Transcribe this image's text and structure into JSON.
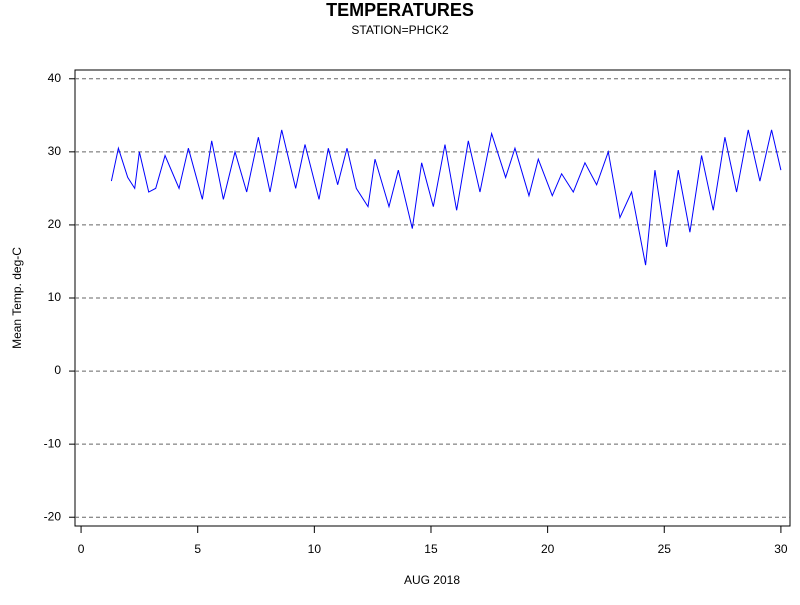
{
  "chart_data": {
    "type": "line",
    "title": "TEMPERATURES",
    "subtitle": "STATION=PHCK2",
    "x_label": "AUG 2018",
    "y_label": "Mean Temp. deg-C",
    "x": [
      1.3,
      1.6,
      2.0,
      2.3,
      2.5,
      2.9,
      3.2,
      3.6,
      4.2,
      4.6,
      5.2,
      5.6,
      6.1,
      6.6,
      7.1,
      7.6,
      8.1,
      8.6,
      9.2,
      9.6,
      10.2,
      10.6,
      11.0,
      11.4,
      11.8,
      12.3,
      12.6,
      13.2,
      13.6,
      14.2,
      14.6,
      15.1,
      15.6,
      16.1,
      16.6,
      17.1,
      17.6,
      18.2,
      18.6,
      19.2,
      19.6,
      20.2,
      20.6,
      21.1,
      21.6,
      22.1,
      22.6,
      23.1,
      23.6,
      24.2,
      24.6,
      25.1,
      25.6,
      26.1,
      26.6,
      27.1,
      27.6,
      28.1,
      28.6,
      29.1,
      29.6,
      30.0
    ],
    "values": [
      26,
      30.5,
      26.5,
      25,
      30,
      24.5,
      25,
      29.5,
      25,
      30.5,
      23.5,
      31.5,
      23.5,
      30,
      24.5,
      32,
      24.5,
      33,
      25,
      31,
      23.5,
      30.5,
      25.5,
      30.5,
      25,
      22.5,
      29,
      22.5,
      27.5,
      19.5,
      28.5,
      22.5,
      31,
      22,
      31.5,
      24.5,
      32.5,
      26.5,
      30.5,
      24,
      29,
      24,
      27,
      24.5,
      28.5,
      25.5,
      30,
      21,
      24.5,
      14.5,
      27.5,
      17,
      27.5,
      19,
      29.5,
      22,
      32,
      24.5,
      33,
      26,
      33,
      27.5
    ],
    "color": "#0000ff",
    "xlim": [
      -0.26,
      30.39
    ],
    "xticks": [
      0,
      5,
      10,
      15,
      20,
      25,
      30
    ],
    "ylim": [
      -21.2,
      41.2
    ],
    "yticks": [
      -20,
      -10,
      0,
      10,
      20,
      30,
      40
    ],
    "grid": true
  }
}
